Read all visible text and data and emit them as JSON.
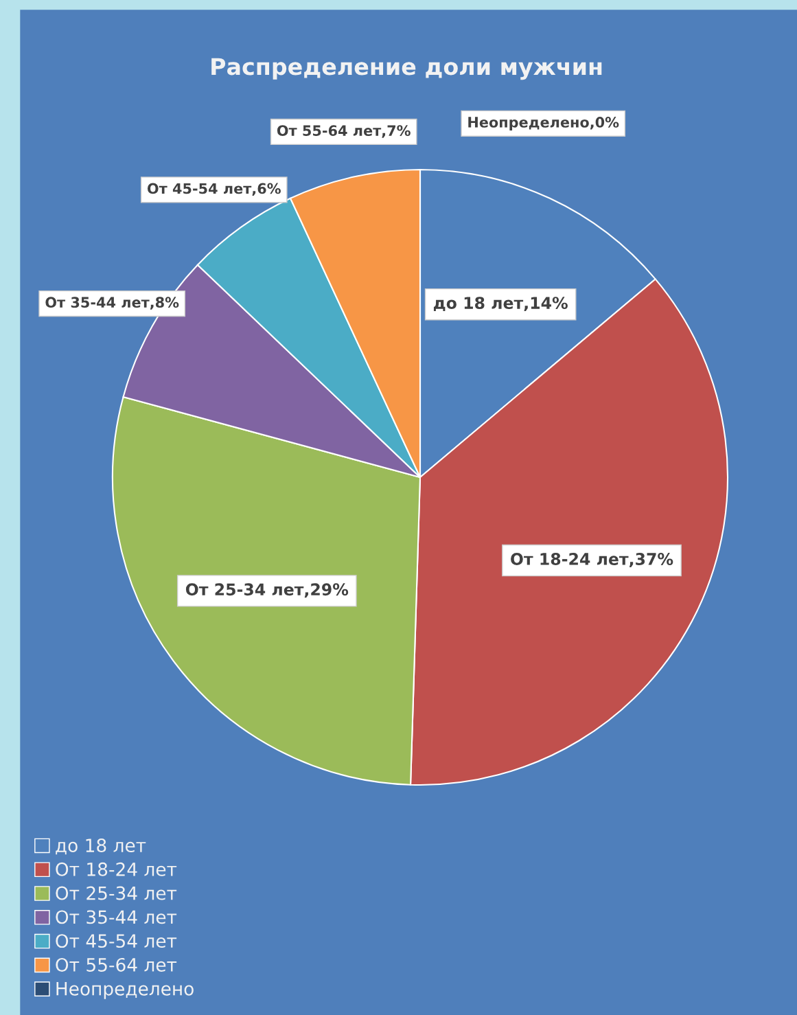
{
  "chart_data": {
    "type": "pie",
    "title": "Распределение доли мужчин",
    "categories": [
      "до 18 лет",
      "От 18-24 лет",
      "От 25-34 лет",
      "От 35-44 лет",
      "От 45-54 лет",
      "От 55-64 лет",
      "Неопределено"
    ],
    "values": [
      14,
      37,
      29,
      8,
      6,
      7,
      0
    ],
    "colors": [
      "#4f81bd",
      "#c0504d",
      "#9bbb59",
      "#8064a2",
      "#4bacc6",
      "#f79646",
      "#2c4d75"
    ],
    "value_labels": [
      "до 18 лет,14%",
      "От 18-24 лет,37%",
      "От 25-34 лет,29%",
      "От 35-44 лет,8%",
      "От 45-54 лет,6%",
      "От 55-64 лет,7%",
      "Неопределено,0%"
    ],
    "legend": "bottom left"
  }
}
